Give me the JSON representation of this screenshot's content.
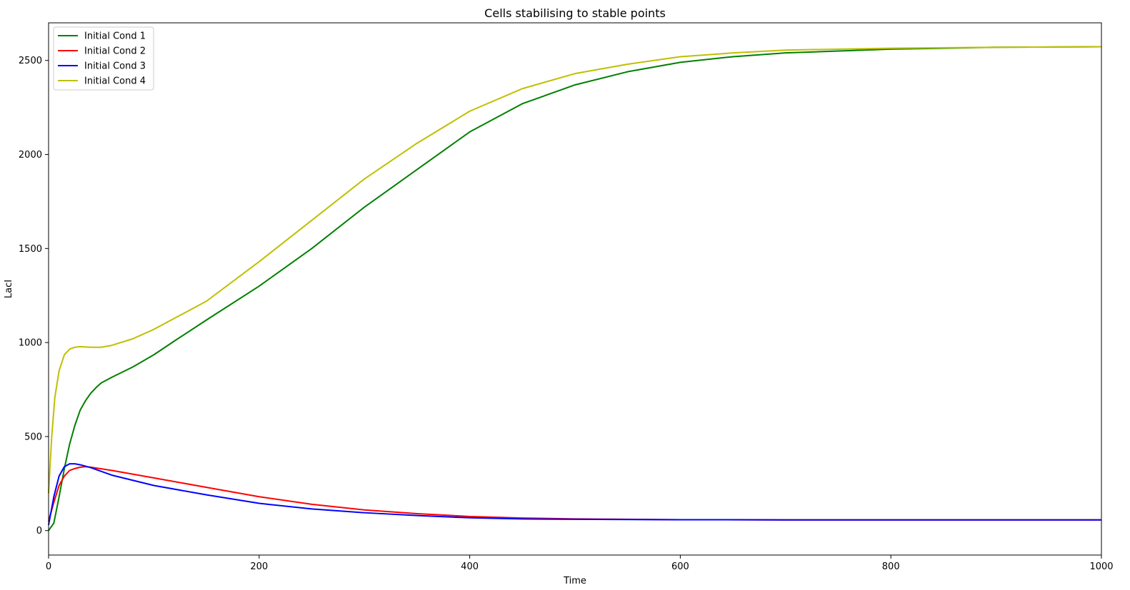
{
  "chart_data": {
    "type": "line",
    "title": "Cells stabilising to stable points",
    "xlabel": "Time",
    "ylabel": "LacI",
    "xlim": [
      0,
      1000
    ],
    "ylim": [
      -130,
      2700
    ],
    "x_ticks": [
      0,
      200,
      400,
      600,
      800,
      1000
    ],
    "y_ticks": [
      0,
      500,
      1000,
      1500,
      2000,
      2500
    ],
    "grid": false,
    "legend_position": "top-left",
    "series": [
      {
        "name": "Initial Cond 1",
        "color": "#008000",
        "points": [
          [
            0,
            0
          ],
          [
            5,
            40
          ],
          [
            10,
            180
          ],
          [
            15,
            330
          ],
          [
            20,
            460
          ],
          [
            25,
            560
          ],
          [
            30,
            640
          ],
          [
            35,
            690
          ],
          [
            40,
            730
          ],
          [
            45,
            760
          ],
          [
            50,
            785
          ],
          [
            60,
            815
          ],
          [
            80,
            870
          ],
          [
            100,
            935
          ],
          [
            120,
            1010
          ],
          [
            150,
            1120
          ],
          [
            200,
            1300
          ],
          [
            250,
            1500
          ],
          [
            300,
            1720
          ],
          [
            350,
            1920
          ],
          [
            400,
            2120
          ],
          [
            450,
            2270
          ],
          [
            500,
            2370
          ],
          [
            550,
            2440
          ],
          [
            600,
            2490
          ],
          [
            650,
            2520
          ],
          [
            700,
            2540
          ],
          [
            800,
            2560
          ],
          [
            900,
            2570
          ],
          [
            1000,
            2573
          ]
        ]
      },
      {
        "name": "Initial Cond 2",
        "color": "#ff0000",
        "points": [
          [
            0,
            50
          ],
          [
            5,
            150
          ],
          [
            10,
            240
          ],
          [
            15,
            290
          ],
          [
            20,
            320
          ],
          [
            25,
            330
          ],
          [
            30,
            337
          ],
          [
            35,
            340
          ],
          [
            40,
            337
          ],
          [
            60,
            320
          ],
          [
            100,
            280
          ],
          [
            150,
            230
          ],
          [
            200,
            180
          ],
          [
            250,
            140
          ],
          [
            300,
            110
          ],
          [
            350,
            90
          ],
          [
            400,
            75
          ],
          [
            450,
            67
          ],
          [
            500,
            62
          ],
          [
            600,
            58
          ],
          [
            700,
            57
          ],
          [
            800,
            57
          ],
          [
            900,
            57
          ],
          [
            1000,
            57
          ]
        ]
      },
      {
        "name": "Initial Cond 3",
        "color": "#0000ff",
        "points": [
          [
            0,
            30
          ],
          [
            5,
            180
          ],
          [
            10,
            290
          ],
          [
            15,
            340
          ],
          [
            20,
            355
          ],
          [
            25,
            355
          ],
          [
            30,
            350
          ],
          [
            40,
            335
          ],
          [
            60,
            295
          ],
          [
            100,
            240
          ],
          [
            150,
            190
          ],
          [
            200,
            145
          ],
          [
            250,
            115
          ],
          [
            300,
            95
          ],
          [
            350,
            80
          ],
          [
            400,
            68
          ],
          [
            450,
            62
          ],
          [
            500,
            60
          ],
          [
            600,
            58
          ],
          [
            700,
            57
          ],
          [
            800,
            57
          ],
          [
            900,
            57
          ],
          [
            1000,
            57
          ]
        ]
      },
      {
        "name": "Initial Cond 4",
        "color": "#bfbf00",
        "points": [
          [
            0,
            200
          ],
          [
            3,
            500
          ],
          [
            6,
            710
          ],
          [
            10,
            850
          ],
          [
            15,
            935
          ],
          [
            20,
            965
          ],
          [
            25,
            975
          ],
          [
            30,
            978
          ],
          [
            40,
            975
          ],
          [
            50,
            975
          ],
          [
            60,
            985
          ],
          [
            80,
            1020
          ],
          [
            100,
            1070
          ],
          [
            150,
            1220
          ],
          [
            200,
            1430
          ],
          [
            250,
            1650
          ],
          [
            300,
            1870
          ],
          [
            350,
            2060
          ],
          [
            400,
            2230
          ],
          [
            450,
            2350
          ],
          [
            500,
            2430
          ],
          [
            550,
            2480
          ],
          [
            600,
            2520
          ],
          [
            650,
            2540
          ],
          [
            700,
            2555
          ],
          [
            800,
            2565
          ],
          [
            900,
            2570
          ],
          [
            1000,
            2573
          ]
        ]
      }
    ]
  }
}
